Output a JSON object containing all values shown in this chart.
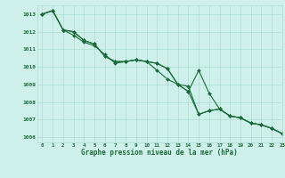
{
  "title": "Graphe pression niveau de la mer (hPa)",
  "background_color": "#cff0ea",
  "grid_color": "#aaddd5",
  "line_color": "#1a6b3a",
  "xlim": [
    -0.5,
    23
  ],
  "ylim": [
    1005.7,
    1013.5
  ],
  "yticks": [
    1006,
    1007,
    1008,
    1009,
    1010,
    1011,
    1012,
    1013
  ],
  "xticks": [
    0,
    1,
    2,
    3,
    4,
    5,
    6,
    7,
    8,
    9,
    10,
    11,
    12,
    13,
    14,
    15,
    16,
    17,
    18,
    19,
    20,
    21,
    22,
    23
  ],
  "series1_y": [
    1013.0,
    1013.2,
    1012.1,
    1012.0,
    1011.5,
    1011.3,
    1010.6,
    1010.3,
    1010.3,
    1010.4,
    1010.3,
    1010.2,
    1009.9,
    1009.0,
    1008.6,
    1007.3,
    1007.5,
    1007.6,
    1007.2,
    1007.1,
    1006.8,
    1006.7,
    1006.5,
    1006.2
  ],
  "series2_y": [
    1013.0,
    1013.2,
    1012.1,
    1012.0,
    1011.5,
    1011.3,
    1010.6,
    1010.3,
    1010.3,
    1010.4,
    1010.3,
    1010.2,
    1009.9,
    1009.0,
    1008.6,
    1009.8,
    1008.5,
    1007.6,
    1007.2,
    1007.1,
    1006.8,
    1006.7,
    1006.5,
    1006.2
  ],
  "series3_y": [
    1013.0,
    1013.2,
    1012.1,
    1011.8,
    1011.4,
    1011.2,
    1010.7,
    1010.2,
    1010.3,
    1010.4,
    1010.3,
    1009.8,
    1009.3,
    1009.0,
    1008.9,
    1007.3,
    1007.5,
    1007.6,
    1007.2,
    1007.1,
    1006.8,
    1006.7,
    1006.5,
    1006.2
  ]
}
